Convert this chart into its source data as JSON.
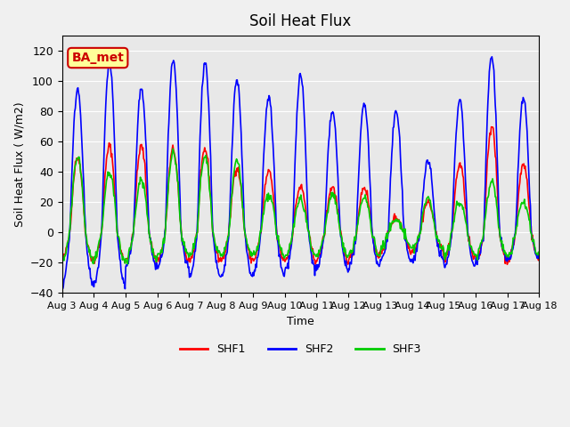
{
  "title": "Soil Heat Flux",
  "xlabel": "Time",
  "ylabel": "Soil Heat Flux ( W/m2)",
  "ylim": [
    -40,
    130
  ],
  "yticks": [
    -40,
    -20,
    0,
    20,
    40,
    60,
    80,
    100,
    120
  ],
  "x_labels": [
    "Aug 3",
    "Aug 4",
    "Aug 5",
    "Aug 6",
    "Aug 7",
    "Aug 8",
    "Aug 9",
    "Aug 10",
    "Aug 11",
    "Aug 12",
    "Aug 13",
    "Aug 14",
    "Aug 15",
    "Aug 16",
    "Aug 17",
    "Aug 18"
  ],
  "legend_labels": [
    "SHF1",
    "SHF2",
    "SHF3"
  ],
  "legend_colors": [
    "#ff0000",
    "#0000ff",
    "#00cc00"
  ],
  "line_colors": [
    "#ff0000",
    "#0000ff",
    "#00cc00"
  ],
  "annotation_text": "BA_met",
  "annotation_color": "#cc0000",
  "annotation_bg": "#ffff99",
  "bg_color": "#e8e8e8",
  "grid_color": "#ffffff",
  "n_days": 15,
  "pts_per_day": 48,
  "shf2_peaks": [
    95,
    113,
    95,
    113,
    113,
    101,
    90,
    104,
    80,
    86,
    80,
    47,
    88,
    117,
    88
  ],
  "shf1_peaks": [
    50,
    57,
    57,
    55,
    55,
    43,
    40,
    30,
    30,
    30,
    10,
    20,
    45,
    70,
    45
  ],
  "shf3_peaks": [
    50,
    40,
    35,
    53,
    50,
    47,
    25,
    22,
    25,
    23,
    8,
    22,
    20,
    34,
    20
  ],
  "shf2_troughs": [
    -35,
    -35,
    -23,
    -23,
    -30,
    -30,
    -28,
    -25,
    -23,
    -23,
    -18,
    -18,
    -23,
    -18,
    -18
  ],
  "shf1_troughs": [
    -18,
    -18,
    -18,
    -18,
    -18,
    -18,
    -18,
    -18,
    -18,
    -18,
    -12,
    -12,
    -18,
    -18,
    -18
  ],
  "shf3_troughs": [
    -18,
    -18,
    -18,
    -15,
    -15,
    -15,
    -15,
    -15,
    -15,
    -15,
    -10,
    -10,
    -15,
    -15,
    -15
  ]
}
